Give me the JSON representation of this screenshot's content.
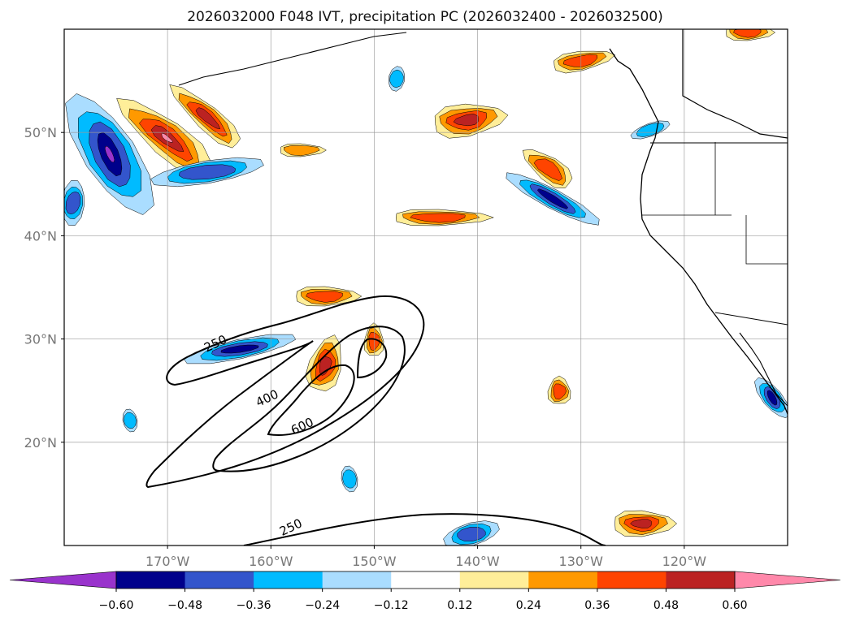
{
  "chart_data": {
    "type": "contour-map",
    "title": "2026032000 F048 IVT, precipitation PC (2026032400 - 2026032500)",
    "lon_range": [
      -180,
      -110
    ],
    "lat_range": [
      10,
      60
    ],
    "grid": true,
    "lon_ticks": [
      {
        "value": -170,
        "label": "170°W"
      },
      {
        "value": -160,
        "label": "160°W"
      },
      {
        "value": -150,
        "label": "150°W"
      },
      {
        "value": -140,
        "label": "140°W"
      },
      {
        "value": -130,
        "label": "130°W"
      },
      {
        "value": -120,
        "label": "120°W"
      }
    ],
    "lat_ticks": [
      {
        "value": 20,
        "label": "20°N"
      },
      {
        "value": 30,
        "label": "30°N"
      },
      {
        "value": 40,
        "label": "40°N"
      },
      {
        "value": 50,
        "label": "50°N"
      }
    ],
    "ivt_contour_levels": [
      250,
      400,
      600
    ],
    "ivt_contour_labels": [
      {
        "text": "250",
        "lon": -165.2,
        "lat": 29.2
      },
      {
        "text": "400",
        "lon": -160.2,
        "lat": 23.9
      },
      {
        "text": "600",
        "lon": -156.8,
        "lat": 21.2
      },
      {
        "text": "250",
        "lon": -157.9,
        "lat": 11.4
      }
    ],
    "colorbar": {
      "levels": [
        -0.6,
        -0.48,
        -0.36,
        -0.24,
        -0.12,
        0.12,
        0.24,
        0.36,
        0.48,
        0.6
      ],
      "tick_labels": [
        "−0.60",
        "−0.48",
        "−0.36",
        "−0.24",
        "−0.12",
        "0.12",
        "0.24",
        "0.36",
        "0.48",
        "0.60"
      ],
      "extend": "both",
      "colors": [
        "#9933cc",
        "#00008b",
        "#3355cc",
        "#00bbff",
        "#aaddff",
        "#ffffff",
        "#ffee99",
        "#ff9900",
        "#ff4400",
        "#bb2222",
        "#ff88aa"
      ]
    }
  }
}
